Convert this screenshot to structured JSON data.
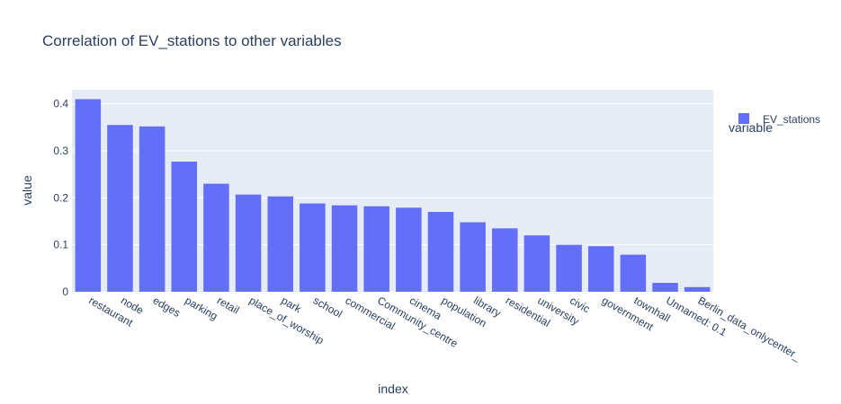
{
  "chart_data": {
    "type": "bar",
    "title": "Correlation of EV_stations to other variables",
    "xlabel": "index",
    "ylabel": "value",
    "ylim": [
      0,
      0.43
    ],
    "yticks": [
      0,
      0.1,
      0.2,
      0.3,
      0.4
    ],
    "ytick_labels": [
      "0",
      "0.1",
      "0.2",
      "0.3",
      "0.4"
    ],
    "grid": true,
    "legend": {
      "title": "variable",
      "placement": "top-right"
    },
    "categories": [
      "restaurant",
      "node",
      "edges",
      "parking",
      "retail",
      "place_of_worship",
      "park",
      "school",
      "commercial",
      "Community_centre",
      "cinema",
      "population",
      "library",
      "residential",
      "university",
      "civic",
      "government",
      "townhall",
      "Unnamed: 0.1",
      "Berlin_data_onlycenter_"
    ],
    "series": [
      {
        "name": "EV_stations",
        "color": "#636efa",
        "values": [
          0.41,
          0.355,
          0.352,
          0.277,
          0.23,
          0.207,
          0.203,
          0.188,
          0.184,
          0.182,
          0.179,
          0.17,
          0.148,
          0.135,
          0.12,
          0.1,
          0.097,
          0.079,
          0.019,
          0.01
        ]
      }
    ],
    "colors": {
      "plot_background": "#e5ecf6",
      "gridline": "#ffffff",
      "text": "#2a3f5f"
    }
  }
}
